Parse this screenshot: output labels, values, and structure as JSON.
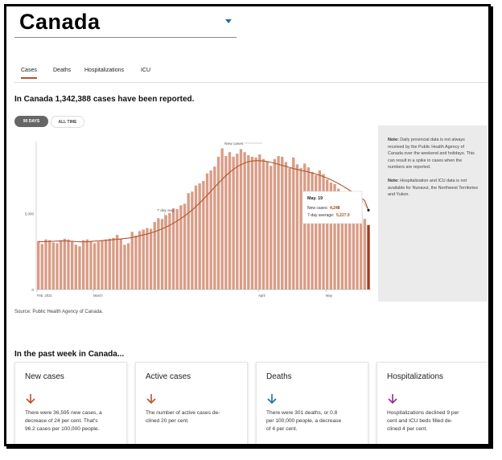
{
  "header": {
    "region": "Canada"
  },
  "tabs": [
    {
      "label": "Cases",
      "active": true
    },
    {
      "label": "Deaths",
      "active": false
    },
    {
      "label": "Hospitalizations",
      "active": false
    },
    {
      "label": "ICU",
      "active": false
    }
  ],
  "headline": "In Canada 1,342,388 cases have been reported.",
  "range_toggle": {
    "selected": "90 DAYS",
    "other": "ALL TIME"
  },
  "chart_data": {
    "type": "bar",
    "y_ticks": [
      "5,000",
      "0"
    ],
    "x_ticks": [
      "Feb. 2021",
      "March",
      "April",
      "May"
    ],
    "annotations": {
      "bars": "New cases",
      "line": "7 day avg."
    },
    "ylim": [
      0,
      9750
    ],
    "bar_color": "#d99c86",
    "highlight_color": "#a33a18",
    "line_color": "#b5532c",
    "series": [
      {
        "name": "New cases",
        "values": [
          3200,
          3000,
          3300,
          3250,
          3100,
          3050,
          3250,
          3350,
          3300,
          3200,
          2950,
          2850,
          3250,
          3300,
          3200,
          3050,
          3150,
          3250,
          3300,
          3350,
          3400,
          3600,
          3350,
          2950,
          3050,
          3800,
          3550,
          3850,
          3950,
          4050,
          4000,
          4450,
          4700,
          4650,
          4900,
          5050,
          5350,
          5300,
          5550,
          5650,
          6350,
          6450,
          6850,
          7000,
          7150,
          7650,
          7850,
          8100,
          8750,
          9300,
          8800,
          9050,
          8750,
          8950,
          9250,
          9050,
          8850,
          8750,
          8700,
          8900,
          8600,
          8450,
          8150,
          8600,
          8800,
          8750,
          8400,
          8000,
          8700,
          8250,
          8000,
          8300,
          8050,
          7750,
          7550,
          7850,
          7600,
          7250,
          7050,
          6950,
          6650,
          6400,
          6150,
          5850,
          5750,
          5450,
          5150,
          4650,
          4248
        ]
      },
      {
        "name": "7-day average",
        "values": [
          3150,
          3150,
          3160,
          3170,
          3180,
          3190,
          3200,
          3200,
          3190,
          3180,
          3160,
          3150,
          3140,
          3150,
          3170,
          3190,
          3200,
          3220,
          3240,
          3260,
          3290,
          3310,
          3330,
          3360,
          3390,
          3430,
          3480,
          3540,
          3600,
          3660,
          3730,
          3810,
          3900,
          4000,
          4110,
          4230,
          4370,
          4520,
          4680,
          4850,
          5040,
          5240,
          5460,
          5700,
          5950,
          6210,
          6480,
          6750,
          7010,
          7260,
          7500,
          7720,
          7920,
          8090,
          8230,
          8340,
          8420,
          8470,
          8490,
          8490,
          8470,
          8430,
          8380,
          8320,
          8250,
          8180,
          8110,
          8040,
          7970,
          7910,
          7850,
          7800,
          7740,
          7680,
          7610,
          7530,
          7440,
          7340,
          7230,
          7110,
          6980,
          6840,
          6690,
          6530,
          6370,
          6200,
          6030,
          5860,
          5227.9
        ]
      }
    ],
    "tooltip": {
      "date": "May. 19",
      "new_cases_label": "New cases:",
      "new_cases_value": "4,248",
      "avg_label": "7-day average:",
      "avg_value": "5,227.9"
    }
  },
  "source": "Source: Public Health Agency of Canada.",
  "notes": [
    {
      "label": "Note:",
      "text": "Daily provincial data is not always received by the Public Health Agency of Canada over the weekend and holidays. This can result in a spike in cases when the numbers are reported."
    },
    {
      "label": "Note:",
      "text": "Hospitalization and ICU data is not available for Nunavut, the Northwest Territories and Yukon."
    }
  ],
  "week": {
    "heading": "In the past week in Canada...",
    "cards": [
      {
        "title": "New cases",
        "arrow_color": "#b5532c",
        "icon": "arrow-down-icon",
        "lines": [
          "There were 36,595 new cases, a",
          "decrease of 24 per cent. That's",
          "96.2 cases per 100,000 people."
        ]
      },
      {
        "title": "Active cases",
        "arrow_color": "#b5532c",
        "icon": "arrow-down-icon",
        "lines": [
          "The number of active cases de-",
          "clined 20 per cent."
        ]
      },
      {
        "title": "Deaths",
        "arrow_color": "#1b6fa8",
        "icon": "arrow-down-icon",
        "lines": [
          "There were 301 deaths, or 0.8",
          "per 100,000 people, a decrease",
          "of 4 per cent."
        ]
      },
      {
        "title": "Hospitalizations",
        "arrow_color": "#8e2f8a",
        "icon": "arrow-down-icon",
        "lines": [
          "Hospitalizations declined 9 per",
          "cent and ICU beds filled de-",
          "clined 4 per cent."
        ]
      }
    ]
  }
}
